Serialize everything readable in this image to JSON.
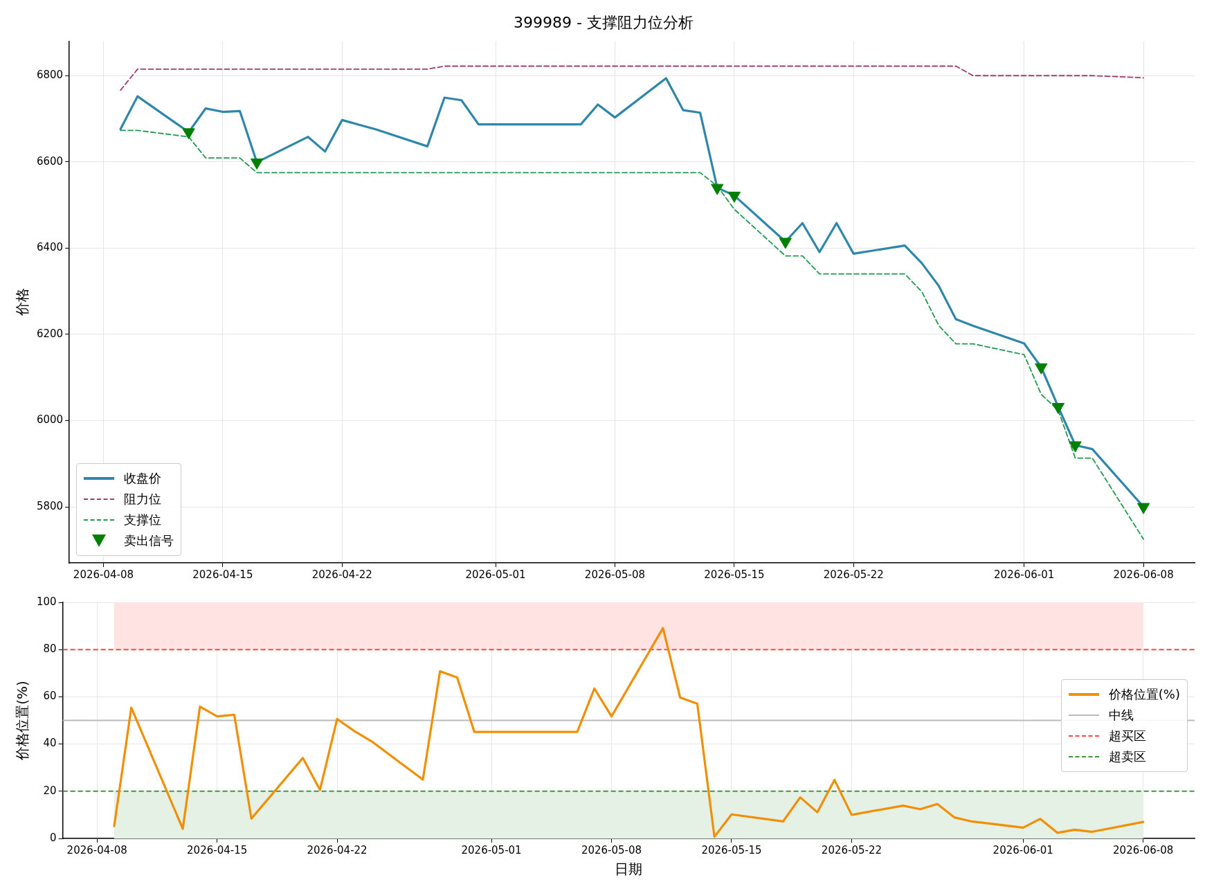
{
  "chart_data": [
    {
      "type": "line",
      "title": "399989 - 支撑阻力位分析",
      "ylabel": "价格",
      "x": [
        "2026-04-09",
        "2026-04-10",
        "2026-04-13",
        "2026-04-14",
        "2026-04-15",
        "2026-04-16",
        "2026-04-17",
        "2026-04-20",
        "2026-04-21",
        "2026-04-22",
        "2026-04-23",
        "2026-04-24",
        "2026-04-27",
        "2026-04-28",
        "2026-04-29",
        "2026-04-30",
        "2026-05-06",
        "2026-05-07",
        "2026-05-08",
        "2026-05-11",
        "2026-05-12",
        "2026-05-13",
        "2026-05-14",
        "2026-05-15",
        "2026-05-18",
        "2026-05-19",
        "2026-05-20",
        "2026-05-21",
        "2026-05-22",
        "2026-05-25",
        "2026-05-26",
        "2026-05-27",
        "2026-05-28",
        "2026-05-29",
        "2026-06-01",
        "2026-06-02",
        "2026-06-03",
        "2026-06-04",
        "2026-06-05",
        "2026-06-08"
      ],
      "series": [
        {
          "name": "收盘价",
          "color": "#2e86ab",
          "values": [
            6676,
            6752,
            6669,
            6724,
            6716,
            6718,
            6599,
            6658,
            6624,
            6697,
            6686,
            6675,
            6636,
            6749,
            6743,
            6687,
            6687,
            6733,
            6703,
            6794,
            6720,
            6714,
            6540,
            6522,
            6415,
            6458,
            6391,
            6458,
            6387,
            6406,
            6365,
            6312,
            6235,
            6220,
            6179,
            6124,
            6032,
            5943,
            5934,
            5800
          ]
        },
        {
          "name": "阻力位",
          "color": "#a23b72",
          "line_style": "dashed",
          "values": [
            6766,
            6815,
            6815,
            6815,
            6815,
            6815,
            6815,
            6815,
            6815,
            6815,
            6815,
            6815,
            6815,
            6822,
            6822,
            6822,
            6822,
            6822,
            6822,
            6822,
            6822,
            6822,
            6822,
            6822,
            6822,
            6822,
            6822,
            6822,
            6822,
            6822,
            6822,
            6822,
            6822,
            6800,
            6800,
            6800,
            6800,
            6800,
            6800,
            6795
          ]
        },
        {
          "name": "支撑位",
          "color": "#1f9a50",
          "line_style": "dashed",
          "values": [
            6673,
            6673,
            6658,
            6609,
            6609,
            6609,
            6575,
            6575,
            6575,
            6575,
            6575,
            6575,
            6575,
            6575,
            6575,
            6575,
            6575,
            6575,
            6575,
            6575,
            6575,
            6575,
            6544,
            6490,
            6382,
            6382,
            6340,
            6340,
            6340,
            6340,
            6299,
            6220,
            6178,
            6178,
            6153,
            6061,
            6024,
            5913,
            5913,
            5725
          ]
        },
        {
          "name": "卖出信号",
          "type": "scatter",
          "marker": "triangle",
          "color": "#008000",
          "x": [
            "2026-04-13",
            "2026-04-17",
            "2026-05-14",
            "2026-05-15",
            "2026-05-18",
            "2026-06-02",
            "2026-06-03",
            "2026-06-04",
            "2026-06-08"
          ],
          "values": [
            6669,
            6599,
            6540,
            6522,
            6415,
            6124,
            6032,
            5943,
            5800
          ]
        }
      ],
      "xlim": [
        "2026-04-06",
        "2026-06-11"
      ],
      "xticks": [
        "2026-04-08",
        "2026-04-15",
        "2026-04-22",
        "2026-05-01",
        "2026-05-08",
        "2026-05-15",
        "2026-05-22",
        "2026-06-01",
        "2026-06-08"
      ],
      "ylim": [
        5670,
        6880
      ],
      "yticks": [
        5800,
        6000,
        6200,
        6400,
        6600,
        6800
      ],
      "grid": true,
      "legend": "bottom left"
    },
    {
      "type": "line",
      "xlabel": "日期",
      "ylabel": "价格位置(%)",
      "x": [
        "2026-04-09",
        "2026-04-10",
        "2026-04-13",
        "2026-04-14",
        "2026-04-15",
        "2026-04-16",
        "2026-04-17",
        "2026-04-20",
        "2026-04-21",
        "2026-04-22",
        "2026-04-23",
        "2026-04-24",
        "2026-04-27",
        "2026-04-28",
        "2026-04-29",
        "2026-04-30",
        "2026-05-06",
        "2026-05-07",
        "2026-05-08",
        "2026-05-11",
        "2026-05-12",
        "2026-05-13",
        "2026-05-14",
        "2026-05-15",
        "2026-05-18",
        "2026-05-19",
        "2026-05-20",
        "2026-05-21",
        "2026-05-22",
        "2026-05-25",
        "2026-05-26",
        "2026-05-27",
        "2026-05-28",
        "2026-05-29",
        "2026-06-01",
        "2026-06-02",
        "2026-06-03",
        "2026-06-04",
        "2026-06-05",
        "2026-06-08"
      ],
      "series": [
        {
          "name": "价格位置(%)",
          "color": "#f18f01",
          "values": [
            5.2,
            55.4,
            4.1,
            55.8,
            51.7,
            52.4,
            8.4,
            34.1,
            20.6,
            50.6,
            45.5,
            41.2,
            24.9,
            70.8,
            68.2,
            45.1,
            45.1,
            63.5,
            51.7,
            89.1,
            59.7,
            57.1,
            0.7,
            10.2,
            7.2,
            17.4,
            11.1,
            24.8,
            10.0,
            13.9,
            12.4,
            14.6,
            8.9,
            7.2,
            4.6,
            8.3,
            2.4,
            3.7,
            2.8,
            7.0
          ]
        }
      ],
      "ref_lines": [
        {
          "axis": "y",
          "value": 50,
          "label": "中线",
          "color": "#bbbbbb",
          "line_style": "solid"
        },
        {
          "axis": "y",
          "value": 80,
          "label": "超买区",
          "color": "#ff4545",
          "line_style": "dashed"
        },
        {
          "axis": "y",
          "value": 20,
          "label": "超卖区",
          "color": "#3a9a3a",
          "line_style": "dashed"
        }
      ],
      "bands": [
        {
          "axis": "y",
          "from": 80,
          "to": 100,
          "color": "#ffe3e3"
        },
        {
          "axis": "y",
          "from": 0,
          "to": 20,
          "color": "#e4f1e4"
        }
      ],
      "xlim": [
        "2026-04-06",
        "2026-06-11"
      ],
      "xticks": [
        "2026-04-08",
        "2026-04-15",
        "2026-04-22",
        "2026-05-01",
        "2026-05-08",
        "2026-05-15",
        "2026-05-22",
        "2026-06-01",
        "2026-06-08"
      ],
      "ylim": [
        0,
        100
      ],
      "yticks": [
        0,
        20,
        40,
        60,
        80,
        100
      ],
      "grid": true,
      "legend": "right"
    }
  ]
}
